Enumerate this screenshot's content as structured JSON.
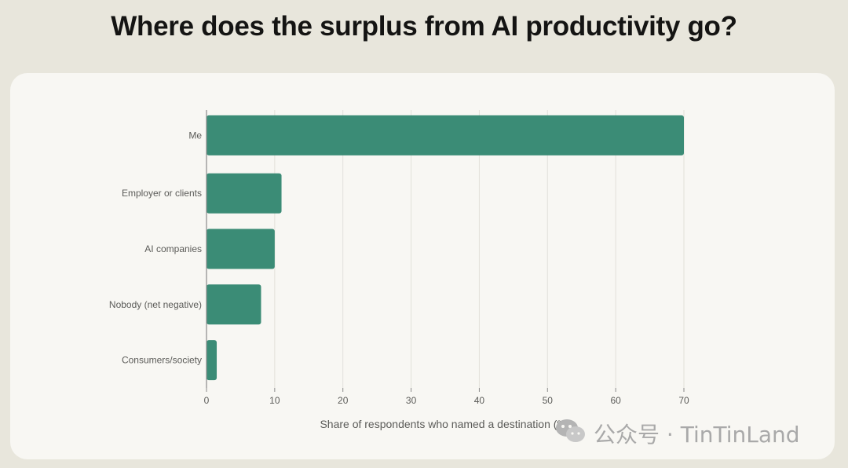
{
  "title": "Where does the surplus from AI productivity go?",
  "watermark": {
    "text": "公众号 · TinTinLand",
    "icon": "wechat-icon"
  },
  "colors": {
    "bar": "#3b8c76",
    "grid": "#e2e0da",
    "axis": "#8a8a8a",
    "label": "#5b5b58",
    "background": "#e8e6dc",
    "card": "#f8f7f3"
  },
  "chart_data": {
    "type": "bar",
    "orientation": "horizontal",
    "title": "Where does the surplus from AI productivity go?",
    "categories": [
      "Me",
      "Employer or clients",
      "AI companies",
      "Nobody (net negative)",
      "Consumers/society"
    ],
    "values": [
      70,
      11,
      10,
      8,
      1.5
    ],
    "xlabel": "Share of respondents who named a destination (%)",
    "ylabel": "",
    "xlim": [
      0,
      70
    ],
    "xticks": [
      0,
      10,
      20,
      30,
      40,
      50,
      60,
      70
    ],
    "grid": true,
    "legend": "none"
  }
}
